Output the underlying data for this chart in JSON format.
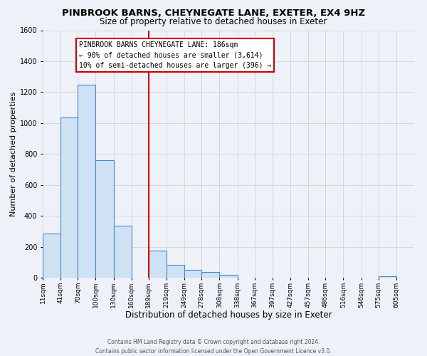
{
  "title": "PINBROOK BARNS, CHEYNEGATE LANE, EXETER, EX4 9HZ",
  "subtitle": "Size of property relative to detached houses in Exeter",
  "xlabel": "Distribution of detached houses by size in Exeter",
  "ylabel": "Number of detached properties",
  "bar_left_edges": [
    11,
    41,
    70,
    100,
    130,
    160,
    189,
    219,
    249,
    278,
    308,
    338,
    367,
    397,
    427,
    457,
    486,
    516,
    546,
    575
  ],
  "bar_heights": [
    285,
    1035,
    1250,
    760,
    335,
    0,
    175,
    85,
    50,
    38,
    20,
    0,
    0,
    0,
    0,
    0,
    0,
    0,
    0,
    10
  ],
  "bar_widths": [
    30,
    29,
    30,
    30,
    30,
    29,
    30,
    30,
    29,
    30,
    30,
    29,
    30,
    30,
    30,
    29,
    30,
    30,
    29,
    30
  ],
  "tick_labels": [
    "11sqm",
    "41sqm",
    "70sqm",
    "100sqm",
    "130sqm",
    "160sqm",
    "189sqm",
    "219sqm",
    "249sqm",
    "278sqm",
    "308sqm",
    "338sqm",
    "367sqm",
    "397sqm",
    "427sqm",
    "457sqm",
    "486sqm",
    "516sqm",
    "546sqm",
    "575sqm",
    "605sqm"
  ],
  "tick_positions": [
    11,
    41,
    70,
    100,
    130,
    160,
    189,
    219,
    249,
    278,
    308,
    338,
    367,
    397,
    427,
    457,
    486,
    516,
    546,
    575,
    605
  ],
  "ylim": [
    0,
    1600
  ],
  "yticks": [
    0,
    200,
    400,
    600,
    800,
    1000,
    1200,
    1400,
    1600
  ],
  "xlim_min": 11,
  "xlim_max": 635,
  "bar_fill_color": "#cfe2f3",
  "bar_edge_color": "#4a86c8",
  "vline_x": 189,
  "vline_color": "#cc0000",
  "annotation_line1": "PINBROOK BARNS CHEYNEGATE LANE: 186sqm",
  "annotation_line2": "← 90% of detached houses are smaller (3,614)",
  "annotation_line3": "10% of semi-detached houses are larger (396) →",
  "annotation_box_color": "#ffffff",
  "annotation_border_color": "#cc0000",
  "footer_line1": "Contains HM Land Registry data © Crown copyright and database right 2024.",
  "footer_line2": "Contains public sector information licensed under the Open Government Licence v3.0.",
  "background_color": "#eef2f8",
  "grid_color": "#cccccc",
  "title_fontsize": 9.5,
  "subtitle_fontsize": 8.5,
  "xlabel_fontsize": 8.5,
  "ylabel_fontsize": 8,
  "tick_fontsize": 6.5,
  "annotation_fontsize": 7,
  "footer_fontsize": 5.5
}
